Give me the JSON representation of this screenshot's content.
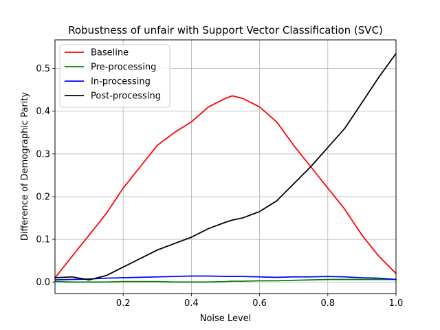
{
  "chart_data": {
    "type": "line",
    "title": "Robustness of unfair with Support Vector Classification (SVC)",
    "xlabel": "Noise Level",
    "ylabel": "Difference of Demographic Parity",
    "xlim": [
      0.0,
      1.0
    ],
    "ylim": [
      -0.027,
      0.567
    ],
    "xticks": [
      0.2,
      0.4,
      0.6,
      0.8,
      1.0
    ],
    "yticks": [
      0.0,
      0.1,
      0.2,
      0.3,
      0.4,
      0.5
    ],
    "grid": true,
    "legend_position": "top-left",
    "x": [
      0.0,
      0.05,
      0.1,
      0.15,
      0.2,
      0.25,
      0.3,
      0.35,
      0.4,
      0.45,
      0.5,
      0.52,
      0.55,
      0.6,
      0.65,
      0.7,
      0.75,
      0.8,
      0.85,
      0.9,
      0.95,
      1.0
    ],
    "series": [
      {
        "name": "Baseline",
        "color": "#ff0000",
        "values": [
          0.01,
          0.06,
          0.11,
          0.16,
          0.22,
          0.27,
          0.32,
          0.35,
          0.375,
          0.41,
          0.43,
          0.436,
          0.43,
          0.41,
          0.375,
          0.32,
          0.27,
          0.22,
          0.17,
          0.11,
          0.06,
          0.02
        ]
      },
      {
        "name": "Pre-processing",
        "color": "#008000",
        "values": [
          0.001,
          0.0,
          0.0,
          0.0,
          0.001,
          0.001,
          0.001,
          0.0,
          0.0,
          0.0,
          0.001,
          0.002,
          0.002,
          0.003,
          0.003,
          0.004,
          0.005,
          0.006,
          0.006,
          0.006,
          0.006,
          0.006
        ]
      },
      {
        "name": "In-processing",
        "color": "#0000ff",
        "values": [
          0.005,
          0.006,
          0.007,
          0.009,
          0.01,
          0.011,
          0.012,
          0.013,
          0.014,
          0.014,
          0.013,
          0.013,
          0.013,
          0.012,
          0.011,
          0.012,
          0.012,
          0.013,
          0.012,
          0.01,
          0.009,
          0.006
        ]
      },
      {
        "name": "Post-processing",
        "color": "#000000",
        "values": [
          0.01,
          0.012,
          0.005,
          0.015,
          0.035,
          0.055,
          0.075,
          0.09,
          0.105,
          0.125,
          0.14,
          0.145,
          0.15,
          0.165,
          0.19,
          0.23,
          0.27,
          0.315,
          0.36,
          0.42,
          0.48,
          0.535
        ]
      }
    ]
  }
}
